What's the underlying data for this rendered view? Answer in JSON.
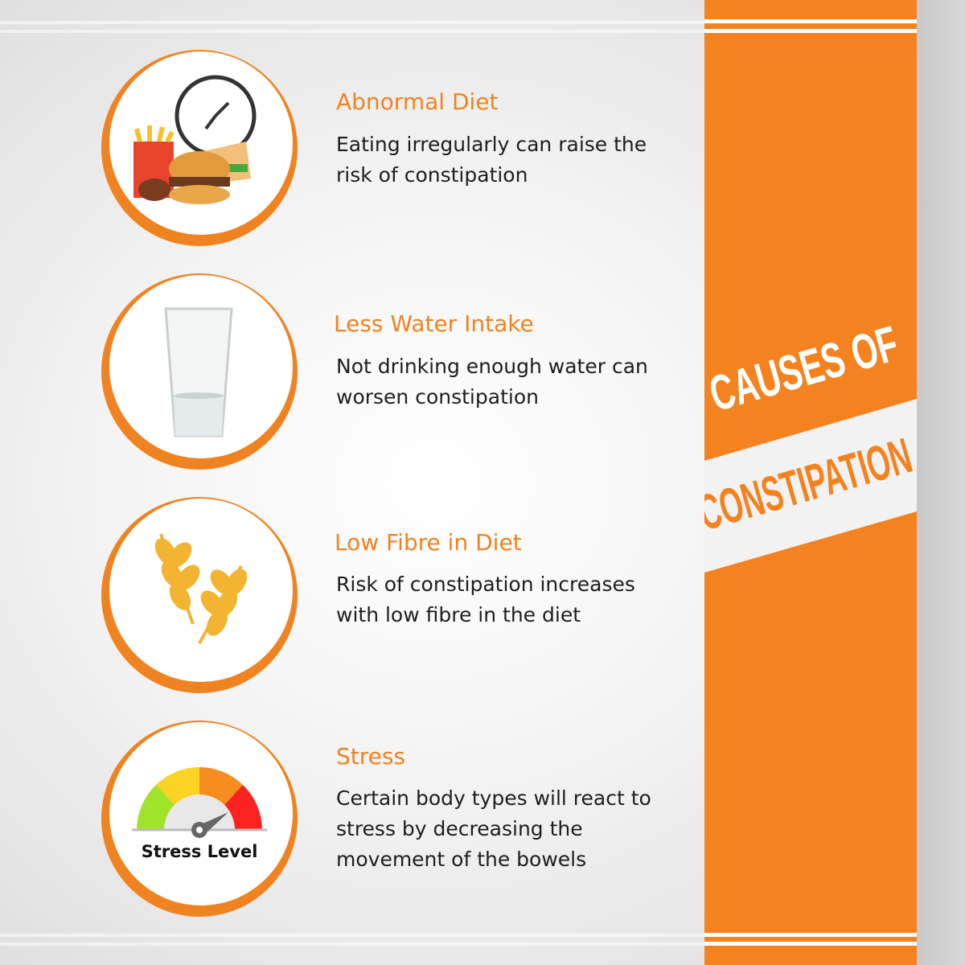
{
  "heading": {
    "line1": "CAUSES OF",
    "line2": "CONSTIPATION"
  },
  "colors": {
    "accent": "#F4821F",
    "text": "#1e1e1e",
    "band": "#f2f2f2"
  },
  "items": [
    {
      "icon": "fast-food-clock-icon",
      "title": "Abnormal Diet",
      "desc": "Eating irregularly can raise the risk of constipation"
    },
    {
      "icon": "water-glass-icon",
      "title": "Less Water Intake",
      "desc": "Not drinking enough water can worsen constipation"
    },
    {
      "icon": "wheat-icon",
      "title": "Low Fibre in Diet",
      "desc": "Risk of constipation increases with low fibre in the diet"
    },
    {
      "icon": "stress-gauge-icon",
      "title": "Stress",
      "desc": "Certain body types will react to stress by decreasing the movement of the bowels",
      "icon_label": "Stress Level"
    }
  ]
}
